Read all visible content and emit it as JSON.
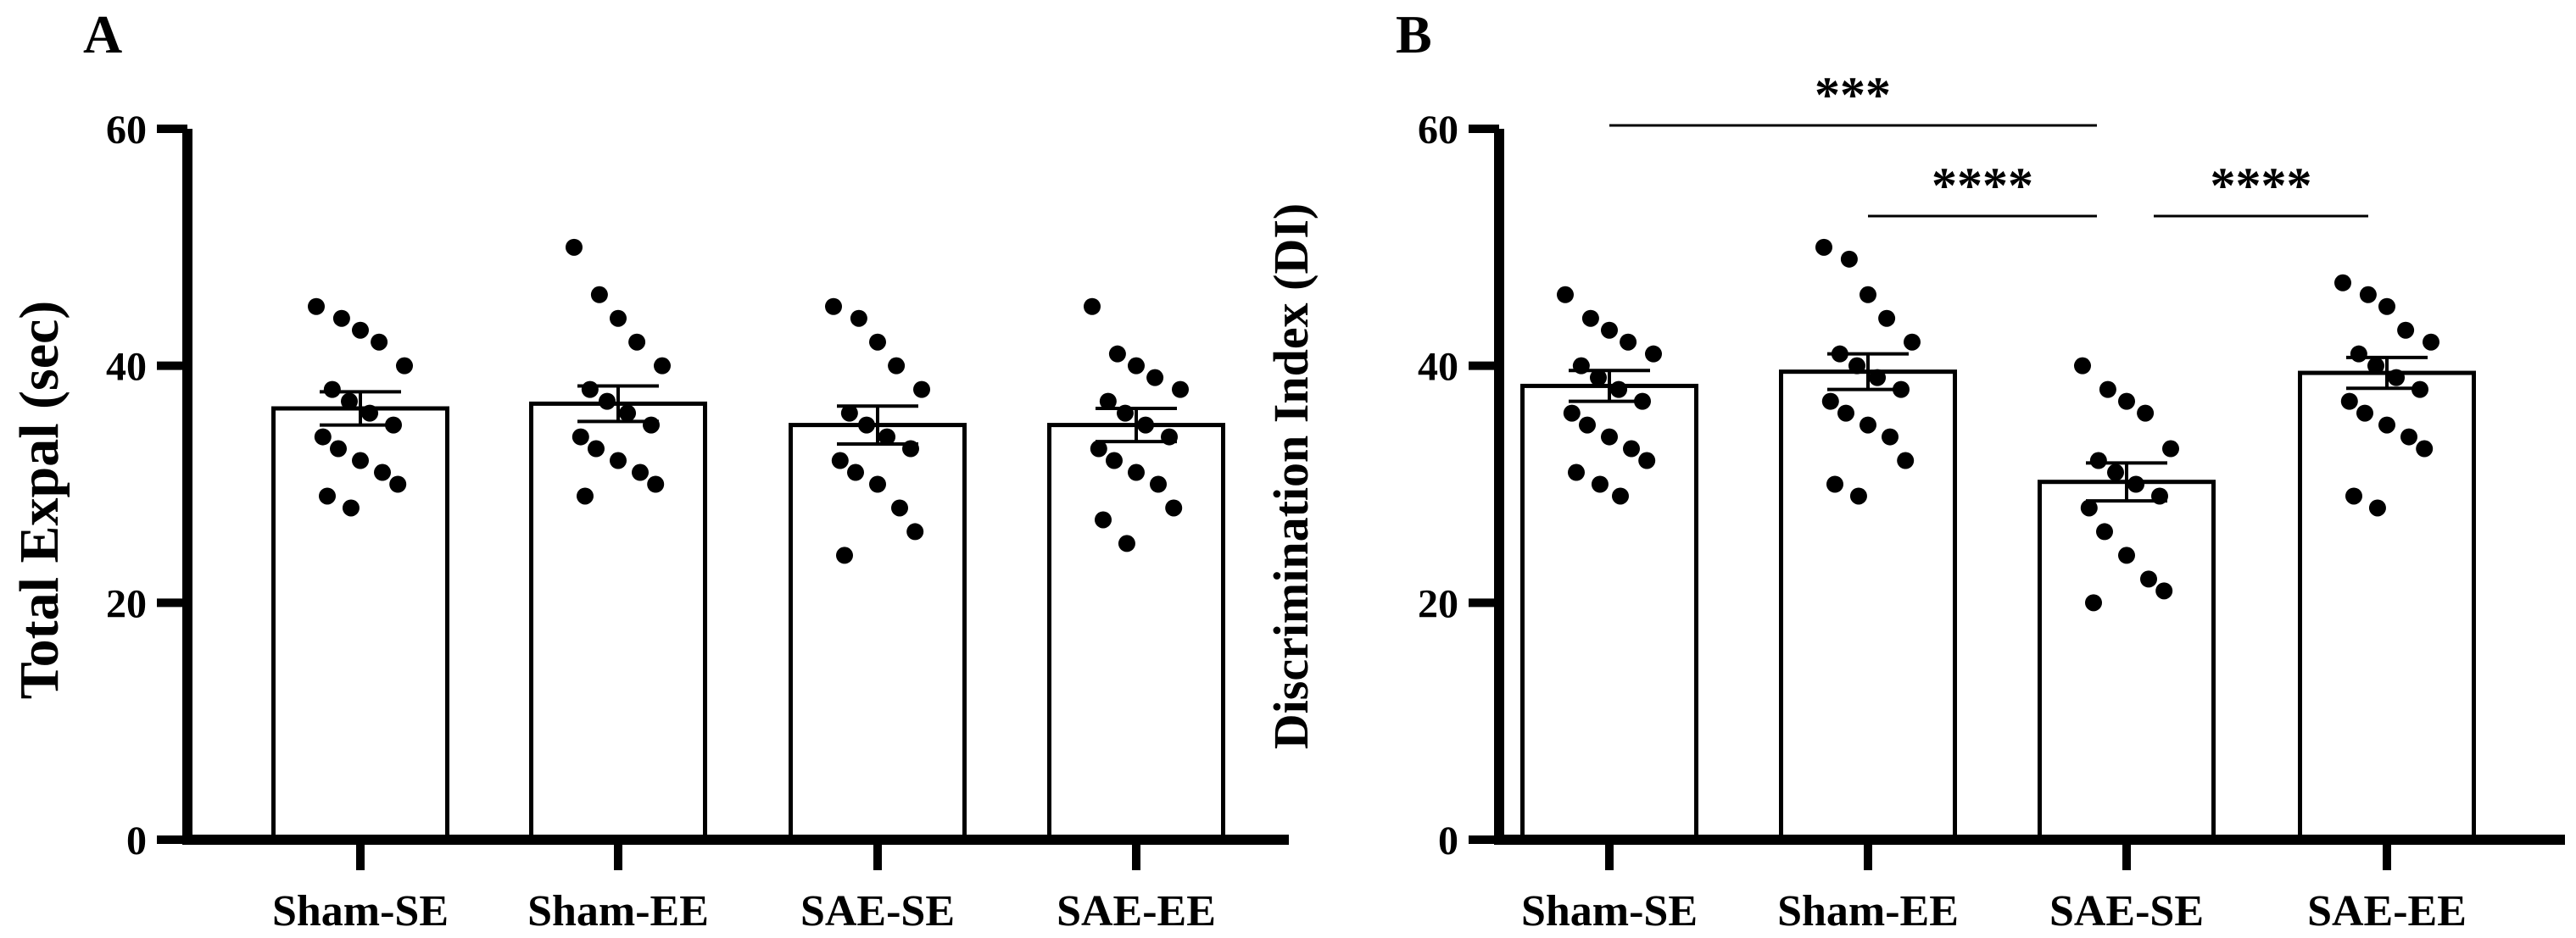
{
  "chart_data": [
    {
      "type": "bar",
      "panel": "A",
      "title": "",
      "ylabel": "Total Expal (sec)",
      "xlabel": "",
      "ylim": [
        0,
        60
      ],
      "yticks": [
        0,
        20,
        40,
        60
      ],
      "categories": [
        "Sham-SE",
        "Sham-EE",
        "SAE-SE",
        "SAE-EE"
      ],
      "values": [
        36.4,
        36.8,
        35.0,
        35.0
      ],
      "errors": [
        1.4,
        1.5,
        1.6,
        1.4
      ],
      "points": [
        [
          45,
          44,
          43,
          42,
          40,
          38,
          37,
          36,
          35,
          34,
          33,
          32,
          31,
          30,
          29,
          28
        ],
        [
          50,
          46,
          44,
          42,
          40,
          38,
          37,
          36,
          35,
          34,
          33,
          32,
          31,
          30,
          29
        ],
        [
          45,
          44,
          42,
          40,
          38,
          36,
          35,
          34,
          33,
          32,
          31,
          30,
          28,
          26,
          24
        ],
        [
          45,
          41,
          40,
          39,
          38,
          37,
          36,
          35,
          34,
          33,
          32,
          31,
          30,
          28,
          27,
          25
        ]
      ],
      "significance": []
    },
    {
      "type": "bar",
      "panel": "B",
      "title": "",
      "ylabel": "Discrimination Index (DI)",
      "xlabel": "",
      "ylim": [
        0,
        60
      ],
      "yticks": [
        0,
        20,
        40,
        60
      ],
      "categories": [
        "Sham-SE",
        "Sham-EE",
        "SAE-SE",
        "SAE-EE"
      ],
      "values": [
        38.3,
        39.5,
        30.2,
        39.4
      ],
      "errors": [
        1.3,
        1.5,
        1.6,
        1.3
      ],
      "points": [
        [
          46,
          44,
          43,
          42,
          41,
          40,
          39,
          38,
          37,
          36,
          35,
          34,
          33,
          32,
          31,
          30,
          29
        ],
        [
          50,
          49,
          46,
          44,
          42,
          41,
          40,
          39,
          38,
          37,
          36,
          35,
          34,
          32,
          30,
          29
        ],
        [
          40,
          38,
          37,
          36,
          33,
          32,
          31,
          30,
          29,
          28,
          26,
          24,
          22,
          21,
          20
        ],
        [
          47,
          46,
          45,
          43,
          42,
          41,
          40,
          39,
          38,
          37,
          36,
          35,
          34,
          33,
          29,
          28
        ]
      ],
      "significance": [
        {
          "from": 0,
          "to": 2,
          "label": "***"
        },
        {
          "from": 1,
          "to": 2,
          "label": "****"
        },
        {
          "from": 2,
          "to": 3,
          "label": "****"
        }
      ]
    }
  ]
}
